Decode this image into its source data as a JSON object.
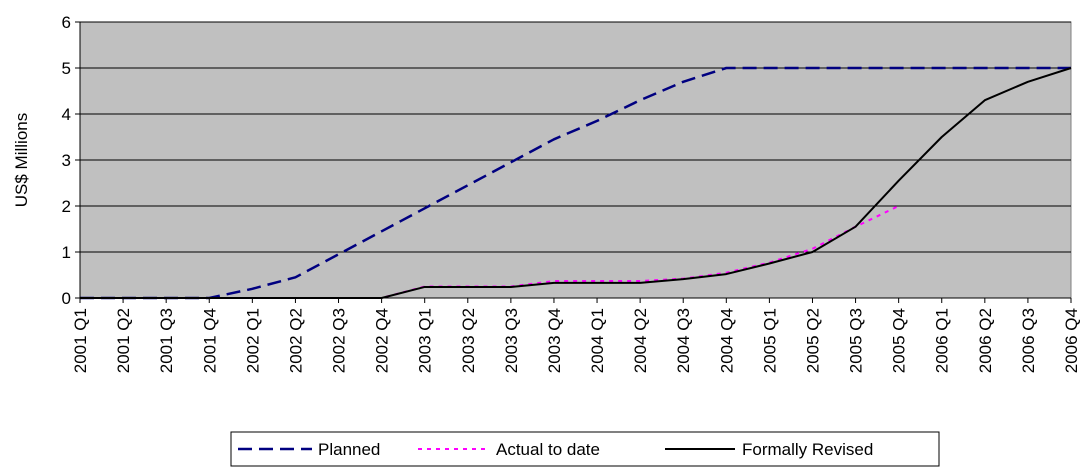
{
  "chart_data": {
    "type": "line",
    "title": "",
    "xlabel": "",
    "ylabel": "US$ Millions",
    "ylim": [
      0,
      6
    ],
    "yticks": [
      0,
      1,
      2,
      3,
      4,
      5,
      6
    ],
    "grid": "horizontal",
    "legend_position": "bottom",
    "categories": [
      "2001 Q1",
      "2001 Q2",
      "2001 Q3",
      "2001 Q4",
      "2002 Q1",
      "2002 Q2",
      "2002 Q3",
      "2002 Q4",
      "2003 Q1",
      "2003 Q2",
      "2003 Q3",
      "2003 Q4",
      "2004 Q1",
      "2004 Q2",
      "2004 Q3",
      "2004 Q4",
      "2005 Q1",
      "2005 Q2",
      "2005 Q3",
      "2005 Q4",
      "2006 Q1",
      "2006 Q2",
      "2006 Q3",
      "2006 Q4"
    ],
    "series": [
      {
        "name": "Planned",
        "style": "dashed",
        "color": "#000080",
        "values": [
          0,
          0,
          0,
          0,
          0.2,
          0.45,
          0.95,
          1.45,
          1.95,
          2.45,
          2.95,
          3.45,
          3.85,
          4.3,
          4.7,
          5.0,
          5.0,
          5.0,
          5.0,
          5.0,
          5.0,
          5.0,
          5.0,
          5.0
        ]
      },
      {
        "name": "Actual to date",
        "style": "dotted",
        "color": "#ff00ff",
        "values": [
          0,
          0,
          0,
          0,
          0,
          0,
          0,
          0,
          0.25,
          0.25,
          0.25,
          0.37,
          0.37,
          0.37,
          0.42,
          0.55,
          0.77,
          1.07,
          1.55,
          2.0,
          null,
          null,
          null,
          null
        ]
      },
      {
        "name": "Formally Revised",
        "style": "solid",
        "color": "#000000",
        "values": [
          0,
          0,
          0,
          0,
          0,
          0,
          0,
          0,
          0.24,
          0.24,
          0.24,
          0.33,
          0.33,
          0.33,
          0.41,
          0.52,
          0.75,
          1.0,
          1.55,
          2.55,
          3.5,
          4.3,
          4.7,
          5.0
        ]
      }
    ]
  }
}
